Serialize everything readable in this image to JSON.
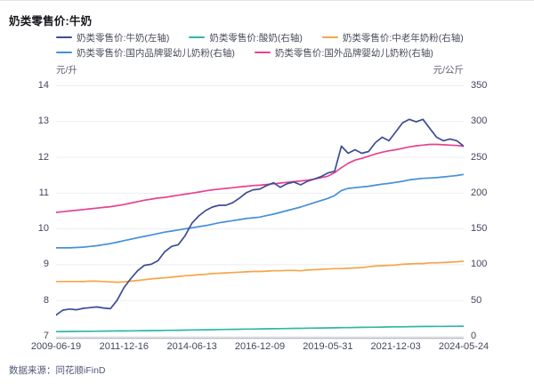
{
  "header": {
    "title": "奶类零售价:牛奶"
  },
  "footer": {
    "source": "数据来源：同花顺iFinD"
  },
  "axes": {
    "left_unit": "元/升",
    "right_unit": "元/公斤",
    "left_ticks": [
      "14",
      "13",
      "12",
      "11",
      "10",
      "9",
      "8",
      "7"
    ],
    "right_ticks": [
      "350",
      "300",
      "250",
      "200",
      "150",
      "100",
      "50",
      "0"
    ],
    "x_ticks": [
      "2009-06-19",
      "2011-12-16",
      "2014-06-13",
      "2016-12-09",
      "2019-05-31",
      "2021-12-03",
      "2024-05-24"
    ]
  },
  "legend": {
    "row_split": [
      3,
      2
    ],
    "items": [
      {
        "label": "奶类零售价:牛奶(左轴)",
        "color": "#3E4B97"
      },
      {
        "label": "奶类零售价:酸奶(右轴)",
        "color": "#2FB8A6"
      },
      {
        "label": "奶类零售价:中老年奶粉(右轴)",
        "color": "#F7A548"
      },
      {
        "label": "奶类零售价:国内品牌婴幼儿奶粉(右轴)",
        "color": "#4590D8"
      },
      {
        "label": "奶类零售价:国外品牌婴幼儿奶粉(右轴)",
        "color": "#E6428F"
      }
    ]
  },
  "colors": {
    "grid": "#ECEDF3",
    "axis_line": "#B6B7BF",
    "milk": "#3E4B97",
    "yogurt": "#2FB8A6",
    "elder_powder": "#F7A548",
    "domestic_formula": "#4590D8",
    "foreign_formula": "#E6428F"
  },
  "chart_data": {
    "type": "line",
    "title": "奶类零售价:牛奶",
    "grid": true,
    "legend_position": "top",
    "left_axis": {
      "unit": "元/升",
      "range": [
        7,
        14
      ],
      "ticks": [
        14,
        13,
        12,
        11,
        10,
        9,
        8,
        7
      ]
    },
    "right_axis": {
      "unit": "元/公斤",
      "range": [
        0,
        350
      ],
      "ticks": [
        350,
        300,
        250,
        200,
        150,
        100,
        50,
        0
      ]
    },
    "x_tick_labels": [
      "2009-06-19",
      "2011-12-16",
      "2014-06-13",
      "2016-12-09",
      "2019-05-31",
      "2021-12-03",
      "2024-05-24"
    ],
    "sampling": "61 points, quarterly, 2009-06 to 2024-05",
    "series": [
      {
        "name": "奶类零售价:酸奶(右轴)",
        "axis": "right",
        "color": "#2FB8A6",
        "values": [
          6.0,
          6.1,
          6.2,
          6.3,
          6.4,
          6.5,
          6.6,
          6.7,
          6.8,
          6.9,
          7.0,
          7.1,
          7.2,
          7.3,
          7.4,
          7.5,
          7.7,
          7.8,
          8.0,
          8.1,
          8.3,
          8.4,
          8.6,
          8.7,
          8.9,
          9.0,
          9.2,
          9.3,
          9.5,
          9.6,
          9.8,
          9.9,
          10.0,
          10.2,
          10.3,
          10.5,
          10.6,
          10.8,
          10.9,
          11.0,
          11.2,
          11.3,
          11.5,
          11.6,
          11.8,
          11.9,
          12.0,
          12.2,
          12.3,
          12.5,
          12.6,
          12.7,
          12.9,
          13.0,
          13.1,
          13.2,
          13.3,
          13.3,
          13.4,
          13.4,
          13.5
        ]
      },
      {
        "name": "奶类零售价:中老年奶粉(右轴)",
        "axis": "right",
        "color": "#F7A548",
        "values": [
          76,
          76,
          76,
          76,
          76,
          76.5,
          76.5,
          76,
          75.5,
          75,
          75.5,
          76.5,
          77.5,
          78.5,
          79.5,
          80.5,
          81,
          82,
          83,
          84,
          84.5,
          85.5,
          86,
          87,
          87.5,
          88,
          88.5,
          89,
          89.5,
          90,
          90,
          90.5,
          91,
          91,
          91.5,
          91.5,
          91,
          92,
          92.5,
          93,
          93.5,
          94,
          94,
          94.5,
          95,
          95.5,
          96.5,
          97.5,
          98,
          98.5,
          99,
          100,
          100.5,
          101,
          101,
          102,
          102,
          102.5,
          103,
          103.5,
          104.5
        ]
      },
      {
        "name": "奶类零售价:国内品牌婴幼儿奶粉(右轴)",
        "axis": "right",
        "color": "#4590D8",
        "values": [
          123,
          123,
          123,
          123.5,
          124,
          125,
          126,
          127.5,
          129,
          131,
          133,
          135,
          137,
          139,
          141,
          143,
          145,
          146.5,
          148,
          149.5,
          151,
          152.5,
          154,
          156,
          158,
          159.5,
          161,
          162.5,
          164,
          165,
          166,
          168,
          170,
          172.5,
          175,
          177.5,
          180,
          183,
          186,
          189,
          192,
          196,
          203,
          206,
          207,
          208,
          209,
          210.5,
          212,
          213,
          214.5,
          216,
          218,
          219,
          220,
          220.5,
          221,
          222,
          223,
          224,
          225.5
        ]
      },
      {
        "name": "奶类零售价:国外品牌婴幼儿奶粉(右轴)",
        "axis": "right",
        "color": "#E6428F",
        "values": [
          172.5,
          173.5,
          174.5,
          175.5,
          176.5,
          177.5,
          178.5,
          179.5,
          180.5,
          182,
          183.5,
          185.5,
          187.5,
          189.5,
          191,
          192.5,
          193.5,
          195,
          196.5,
          198,
          199.5,
          201,
          202.5,
          204,
          205,
          206,
          207,
          208,
          209,
          210,
          210.5,
          211.5,
          212.5,
          213.5,
          214.5,
          215.5,
          216.5,
          217.5,
          219,
          221,
          223,
          228,
          235,
          241,
          245.5,
          248,
          251,
          254,
          256.5,
          258.5,
          260,
          262,
          264,
          265.5,
          266.5,
          267.5,
          267.5,
          267,
          266.5,
          266,
          265
        ]
      },
      {
        "name": "奶类零售价:牛奶(左轴)",
        "axis": "left",
        "color": "#3E4B97",
        "values": [
          7.58,
          7.72,
          7.75,
          7.73,
          7.77,
          7.79,
          7.81,
          7.78,
          7.76,
          8.0,
          8.35,
          8.6,
          8.82,
          8.97,
          9.0,
          9.1,
          9.35,
          9.5,
          9.55,
          9.8,
          10.15,
          10.35,
          10.5,
          10.6,
          10.65,
          10.65,
          10.72,
          10.85,
          11.0,
          11.08,
          11.1,
          11.2,
          11.28,
          11.15,
          11.25,
          11.3,
          11.22,
          11.32,
          11.38,
          11.45,
          11.55,
          11.6,
          12.3,
          12.1,
          12.2,
          12.1,
          12.15,
          12.4,
          12.55,
          12.45,
          12.7,
          12.95,
          13.05,
          12.98,
          13.05,
          12.8,
          12.55,
          12.45,
          12.5,
          12.45,
          12.3
        ]
      }
    ]
  }
}
